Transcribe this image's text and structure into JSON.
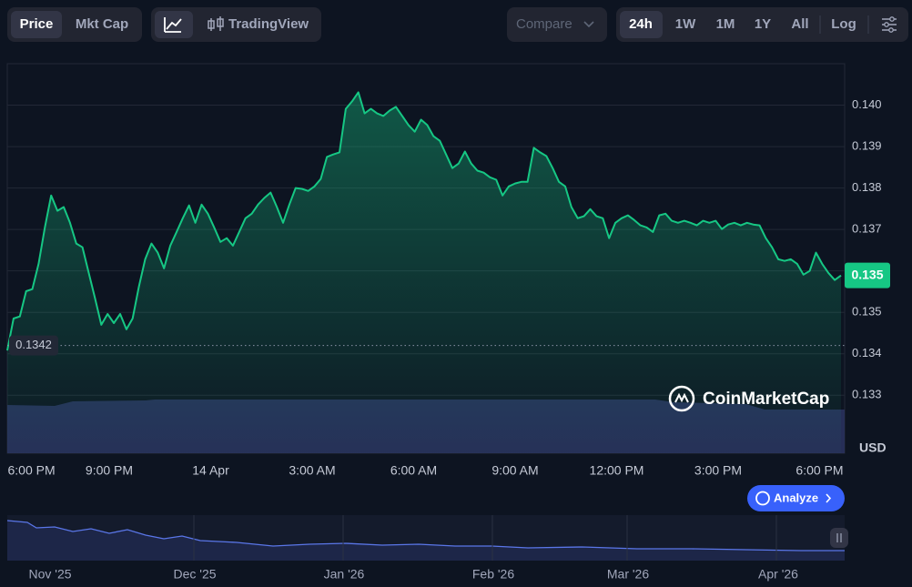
{
  "toolbar": {
    "metric_tabs": [
      "Price",
      "Mkt Cap"
    ],
    "chart_tool": "TradingView",
    "compare": "Compare",
    "ranges": [
      "24h",
      "1W",
      "1M",
      "1Y",
      "All"
    ],
    "log": "Log"
  },
  "chart_data": {
    "type": "line",
    "color": "#16c784",
    "grid": true,
    "unit": "USD",
    "values": [
      0.13408,
      0.13485,
      0.1349,
      0.13551,
      0.13556,
      0.13617,
      0.13705,
      0.13782,
      0.13745,
      0.13754,
      0.13716,
      0.13666,
      0.13657,
      0.13595,
      0.13534,
      0.1347,
      0.13496,
      0.13474,
      0.13496,
      0.13459,
      0.13485,
      0.13562,
      0.13628,
      0.13666,
      0.13644,
      0.13606,
      0.13661,
      0.13694,
      0.13727,
      0.13758,
      0.13716,
      0.1376,
      0.13738,
      0.13705,
      0.1367,
      0.13679,
      0.13661,
      0.13694,
      0.13727,
      0.13738,
      0.1376,
      0.13776,
      0.13789,
      0.13754,
      0.13716,
      0.1376,
      0.138,
      0.13798,
      0.13793,
      0.13804,
      0.13822,
      0.13875,
      0.13881,
      0.13886,
      0.13991,
      0.14009,
      0.14031,
      0.1398,
      0.13991,
      0.1398,
      0.13974,
      0.13987,
      0.13996,
      0.13974,
      0.13952,
      0.13936,
      0.13965,
      0.13952,
      0.13925,
      0.13914,
      0.13881,
      0.13848,
      0.13859,
      0.13888,
      0.13859,
      0.13842,
      0.13837,
      0.13826,
      0.1382,
      0.13782,
      0.13804,
      0.13811,
      0.13815,
      0.13815,
      0.13897,
      0.13886,
      0.13877,
      0.13848,
      0.13815,
      0.13804,
      0.13754,
      0.13727,
      0.13732,
      0.13749,
      0.13732,
      0.13727,
      0.13679,
      0.13716,
      0.13727,
      0.13734,
      0.13723,
      0.1371,
      0.13705,
      0.13694,
      0.13734,
      0.13738,
      0.13721,
      0.13716,
      0.13721,
      0.13716,
      0.1371,
      0.13721,
      0.13716,
      0.13721,
      0.13701,
      0.13712,
      0.13716,
      0.1371,
      0.13716,
      0.13712,
      0.1371,
      0.13679,
      0.13657,
      0.13628,
      0.13624,
      0.13628,
      0.13617,
      0.13591,
      0.136,
      0.13644,
      0.13617,
      0.13595,
      0.13578,
      0.13589
    ],
    "ylim": [
      0.1316,
      0.141
    ],
    "yticks": [
      {
        "value": 0.14,
        "label": "0.140"
      },
      0.139,
      0.138,
      0.137,
      0.136,
      0.135,
      0.134,
      0.133
    ],
    "xtick_labels": [
      "6:00 PM",
      "9:00 PM",
      "14 Apr",
      "3:00 AM",
      "6:00 AM",
      "9:00 AM",
      "12:00 PM",
      "3:00 PM",
      "6:00 PM"
    ],
    "open_price": 0.1342,
    "price_label": "0.135"
  },
  "watermark": "CoinMarketCap",
  "analyze_button": "Analyze",
  "navigator": {
    "labels": [
      "Nov '25",
      "Dec '25",
      "Jan '26",
      "Feb '26",
      "Mar '26",
      "Apr '26"
    ]
  }
}
